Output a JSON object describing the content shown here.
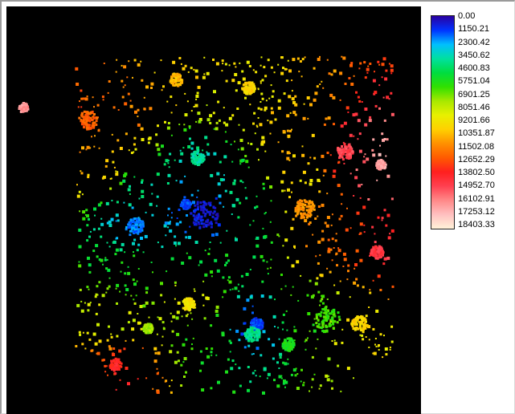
{
  "legend": {
    "labels": [
      "0.00",
      "1150.21",
      "2300.42",
      "3450.62",
      "4600.83",
      "5751.04",
      "6901.25",
      "8051.46",
      "9201.66",
      "10351.87",
      "11502.08",
      "12652.29",
      "13802.50",
      "14952.70",
      "16102.91",
      "17253.12",
      "18403.33"
    ],
    "min": 0.0,
    "max": 18403.33,
    "colormap": [
      "#2a00a0",
      "#0033ff",
      "#00bfff",
      "#00e0a0",
      "#00dd40",
      "#30e000",
      "#a8e800",
      "#e8f000",
      "#ffd000",
      "#ff9000",
      "#ff5a00",
      "#ff1f1f",
      "#ff4050",
      "#ff8888",
      "#ffc0c0",
      "#fff2d8"
    ]
  },
  "colors": {
    "map_background": "#000000",
    "page_background": "#ffffff",
    "frame_border": "#9a9a9a"
  }
}
